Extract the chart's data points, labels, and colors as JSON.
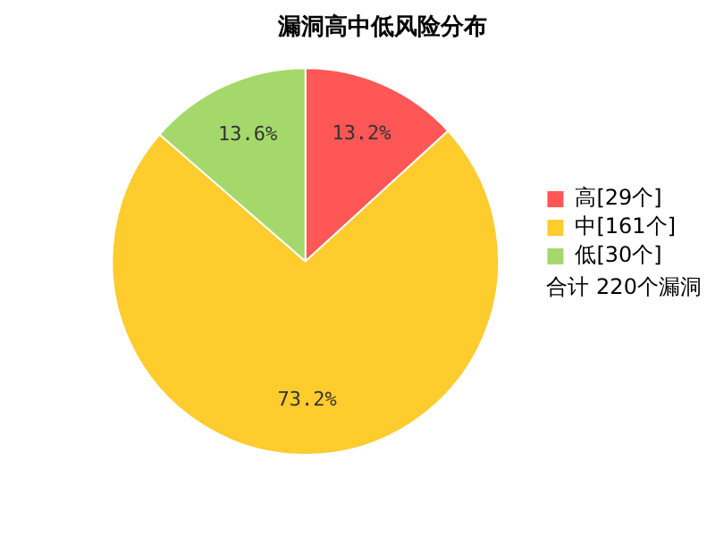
{
  "chart_data": {
    "type": "pie",
    "title": "漏洞高中低风险分布",
    "categories": [
      "高[29个]",
      "中[161个]",
      "低[30个]"
    ],
    "values": [
      13.2,
      73.2,
      13.6
    ],
    "colors": [
      "#ff5656",
      "#ffcc2e",
      "#a5d86b"
    ],
    "value_labels": [
      "13.2%",
      "73.2%",
      "13.6%"
    ],
    "legend": "right",
    "annotations": [
      "合计 220个漏洞"
    ]
  }
}
